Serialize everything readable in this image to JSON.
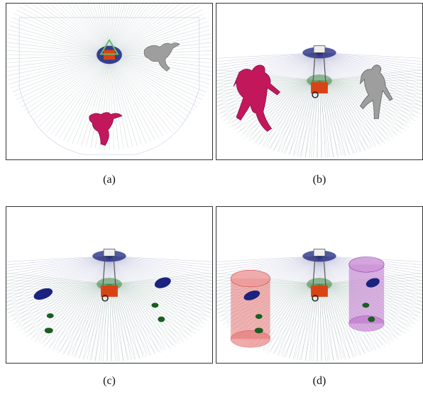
{
  "figure": {
    "panels": [
      {
        "id": "a",
        "caption": "(a)",
        "view": "top-down",
        "humans": [
          "pink-human",
          "gray-human"
        ]
      },
      {
        "id": "b",
        "caption": "(b)",
        "view": "perspective",
        "humans": [
          "pink-human",
          "gray-human"
        ]
      },
      {
        "id": "c",
        "caption": "(c)",
        "view": "perspective",
        "detections": [
          "blue-ellipses",
          "green-ellipses"
        ]
      },
      {
        "id": "d",
        "caption": "(d)",
        "view": "perspective",
        "tracks": [
          "red-cylinder",
          "purple-cylinder"
        ]
      }
    ],
    "colors": {
      "scan_blue": "#1a237e",
      "scan_green": "#2e7d32",
      "human_pink": "#c2185b",
      "human_gray": "#9e9e9e",
      "cylinder_red": "#e57373",
      "cylinder_purple": "#ba68c8",
      "robot_red": "#d84315"
    }
  }
}
